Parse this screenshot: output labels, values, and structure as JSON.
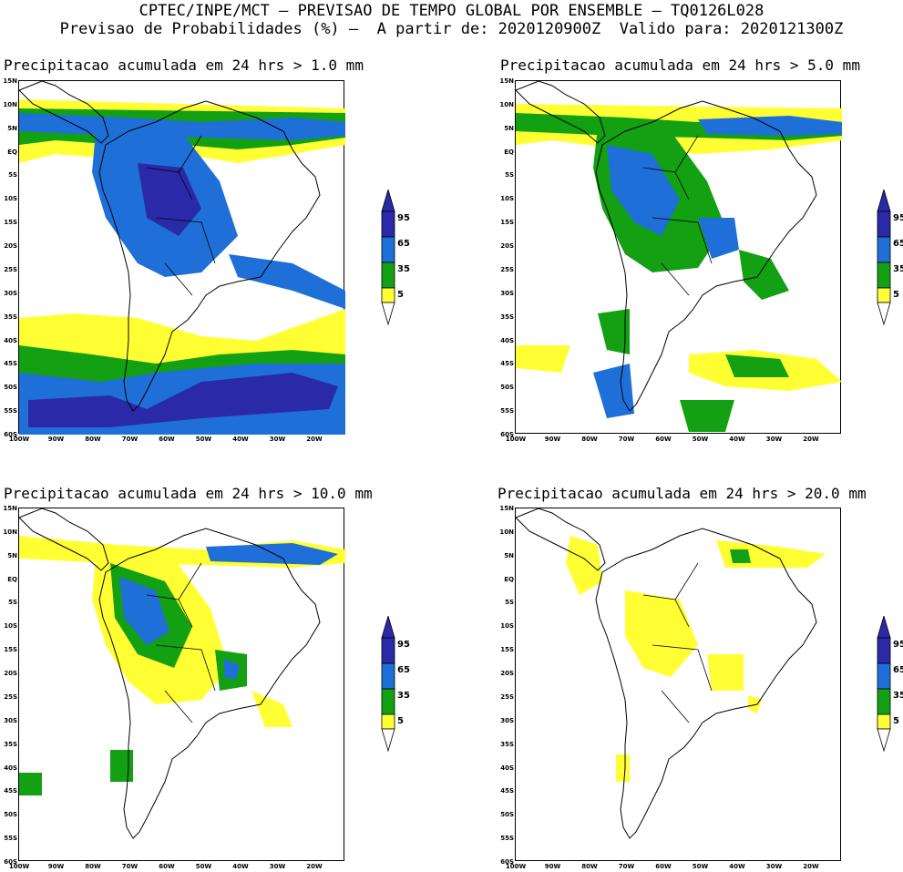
{
  "header": {
    "line1": "CPTEC/INPE/MCT – PREVISAO DE TEMPO GLOBAL POR ENSEMBLE – TQ0126L028",
    "line2": "Previsao de Probabilidades (%) –  A partir de: 2020120900Z  Valido para: 2020121300Z"
  },
  "panels": [
    {
      "title": "Precipitacao acumulada em 24 hrs > 1.0 mm"
    },
    {
      "title": "Precipitacao acumulada em 24 hrs > 5.0 mm"
    },
    {
      "title": "Precipitacao acumulada em 24 hrs > 10.0 mm"
    },
    {
      "title": "Precipitacao acumulada em 24 hrs > 20.0 mm"
    }
  ],
  "lat_labels": [
    "15N",
    "10N",
    "5N",
    "EQ",
    "5S",
    "10S",
    "15S",
    "20S",
    "25S",
    "30S",
    "35S",
    "40S",
    "45S",
    "50S",
    "55S",
    "60S"
  ],
  "lon_labels": [
    "100W",
    "90W",
    "80W",
    "70W",
    "60W",
    "50W",
    "40W",
    "30W",
    "20W"
  ],
  "legend": {
    "labels": [
      "95",
      "65",
      "35",
      "5"
    ],
    "colors": {
      "95": "#2a2aa8",
      "65": "#1f6fd8",
      "35": "#13a013",
      "5": "#ffff33"
    }
  },
  "colors": {
    "low": "#ffff33",
    "mid": "#13a013",
    "high": "#1f6fd8",
    "top": "#2a2aa8"
  }
}
